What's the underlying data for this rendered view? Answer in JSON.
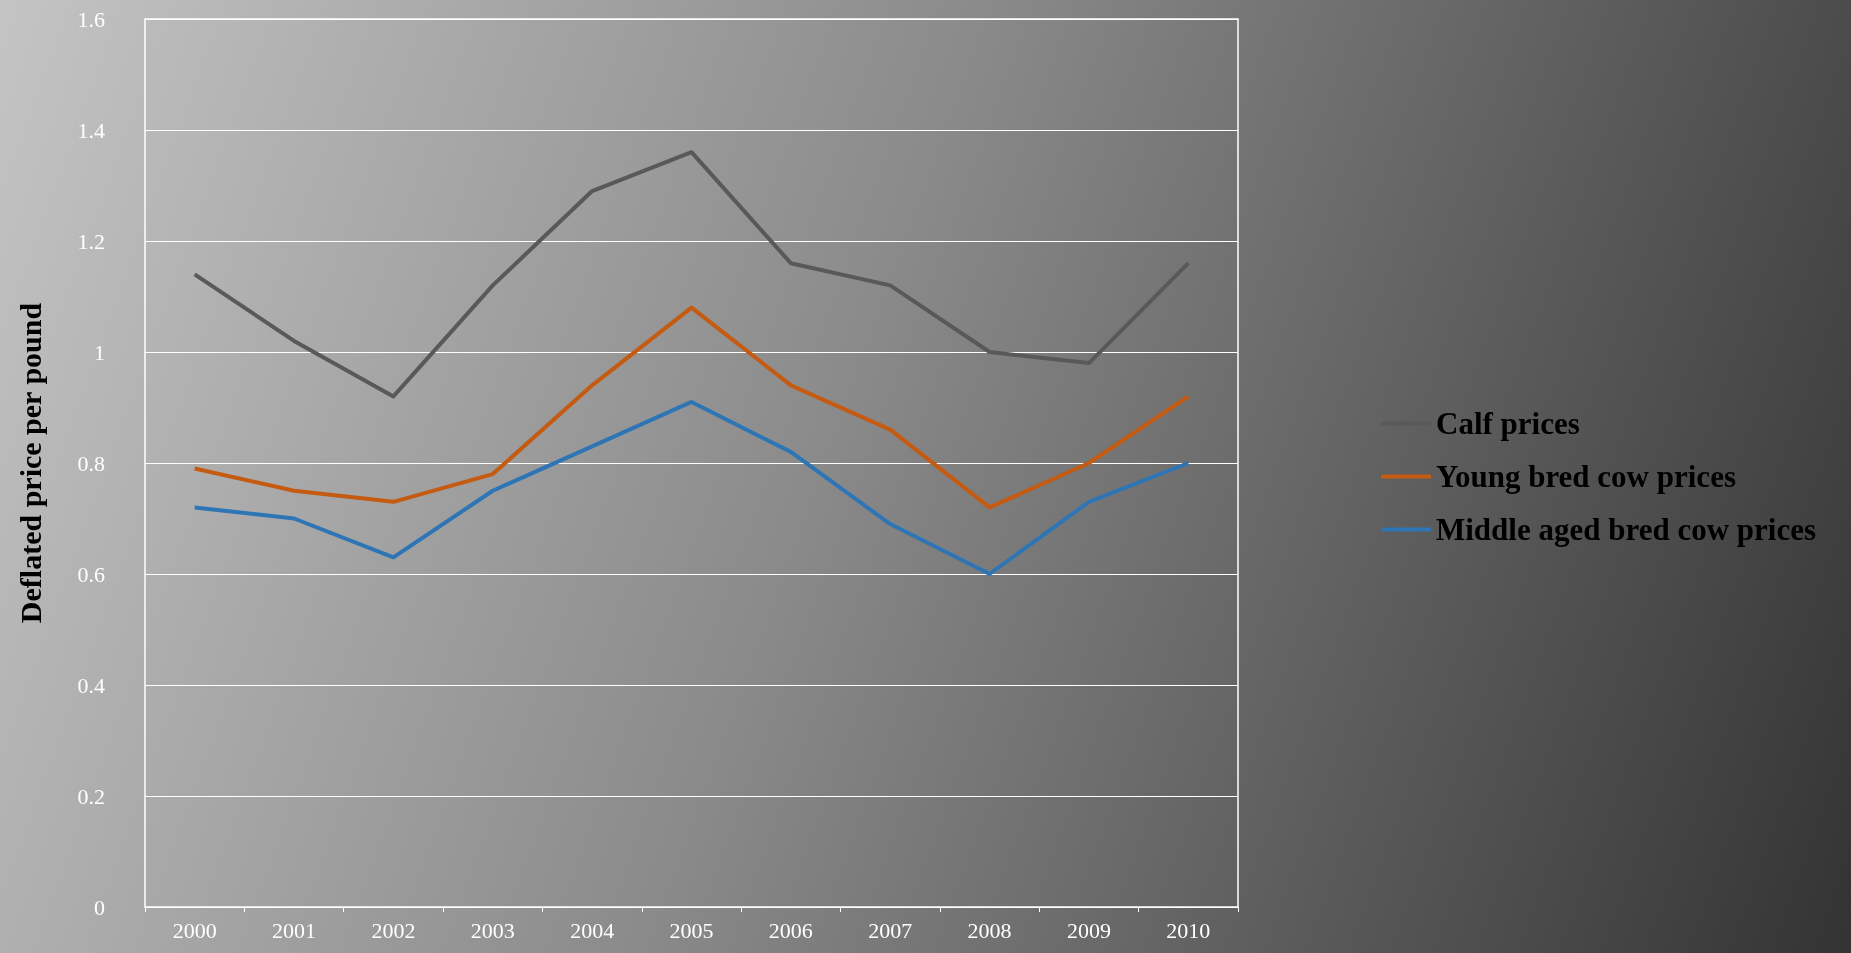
{
  "chart_data": {
    "type": "line",
    "ylabel": "Deflated price per pound",
    "categories": [
      "2000",
      "2001",
      "2002",
      "2003",
      "2004",
      "2005",
      "2006",
      "2007",
      "2008",
      "2009",
      "2010"
    ],
    "series": [
      {
        "name": "Calf prices",
        "color": "#595959",
        "values": [
          1.14,
          1.02,
          0.92,
          1.12,
          1.29,
          1.36,
          1.16,
          1.12,
          1.0,
          0.98,
          1.16
        ]
      },
      {
        "name": "Young bred cow prices",
        "color": "#c55a11",
        "values": [
          0.79,
          0.75,
          0.73,
          0.78,
          0.94,
          1.08,
          0.94,
          0.86,
          0.72,
          0.8,
          0.92
        ]
      },
      {
        "name": "Middle aged bred cow prices",
        "color": "#2e75b6",
        "values": [
          0.72,
          0.7,
          0.63,
          0.75,
          0.83,
          0.91,
          0.82,
          0.69,
          0.6,
          0.73,
          0.8
        ]
      }
    ],
    "ylim": [
      0,
      1.6
    ],
    "yticks": [
      0,
      0.2,
      0.4,
      0.6,
      0.8,
      1,
      1.2,
      1.4,
      1.6
    ],
    "grid": "y",
    "legend": "right",
    "marker": "none",
    "line_style": "solid"
  }
}
